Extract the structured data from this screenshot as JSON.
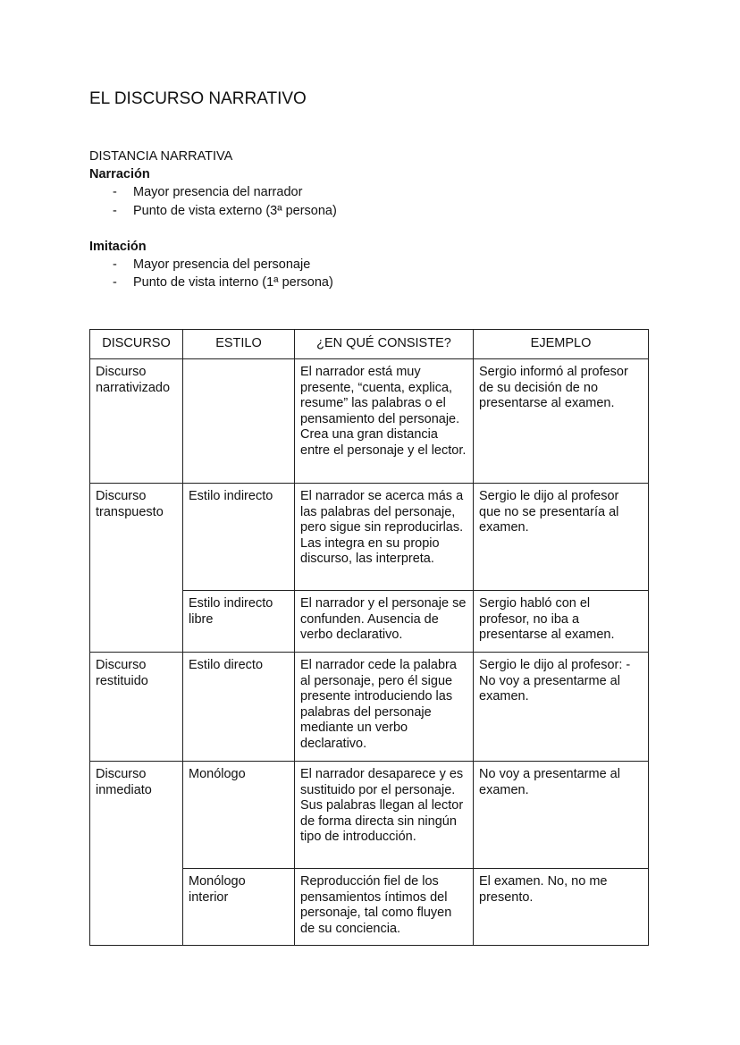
{
  "title": "EL DISCURSO NARRATIVO",
  "section_heading": "DISTANCIA NARRATIVA",
  "narracion": {
    "heading": "Narración",
    "bullets": [
      "Mayor presencia del narrador",
      "Punto de vista externo (3ª persona)"
    ]
  },
  "imitacion": {
    "heading": "Imitación",
    "bullets": [
      "Mayor presencia del personaje",
      "Punto de vista interno (1ª persona)"
    ]
  },
  "bullet_marker": "-",
  "table": {
    "headers": [
      "DISCURSO",
      "ESTILO",
      "¿EN QUÉ CONSISTE?",
      "EJEMPLO"
    ],
    "rows": [
      {
        "discurso": "Discurso narrativizado",
        "estilo": "",
        "consiste": "El narrador está muy presente, “cuenta, explica, resume” las palabras o el pensamiento del personaje. Crea una gran distancia entre el personaje y el lector.",
        "ejemplo": "Sergio informó al profesor de su decisión de no presentarse al examen."
      },
      {
        "discurso": "Discurso transpuesto",
        "estilo": "Estilo indirecto",
        "consiste": "El narrador se acerca más a las palabras del personaje, pero sigue sin reproducirlas. Las integra en su propio discurso, las interpreta.",
        "ejemplo": "Sergio le dijo al profesor que no se presentaría al examen."
      },
      {
        "discurso": "",
        "estilo": "Estilo indirecto libre",
        "consiste": "El narrador y el personaje se confunden. Ausencia de verbo declarativo.",
        "ejemplo": "Sergio habló con el profesor, no iba a presentarse al examen."
      },
      {
        "discurso": "Discurso restituido",
        "estilo": "Estilo directo",
        "consiste": "El narrador cede la palabra al personaje, pero él sigue presente introduciendo las palabras del personaje mediante un verbo declarativo.",
        "ejemplo": "Sergio le dijo al profesor: -No voy a presentarme al examen."
      },
      {
        "discurso": "Discurso inmediato",
        "estilo": "Monólogo",
        "consiste": "El narrador desaparece y es sustituido por el personaje. Sus palabras llegan al lector de forma directa sin ningún tipo de introducción.",
        "ejemplo": "No voy a presentarme al examen."
      },
      {
        "discurso": "",
        "estilo": "Monólogo interior",
        "consiste": "Reproducción fiel de los pensamientos íntimos del personaje, tal como fluyen de su conciencia.",
        "ejemplo": "El examen. No, no me presento."
      }
    ]
  }
}
